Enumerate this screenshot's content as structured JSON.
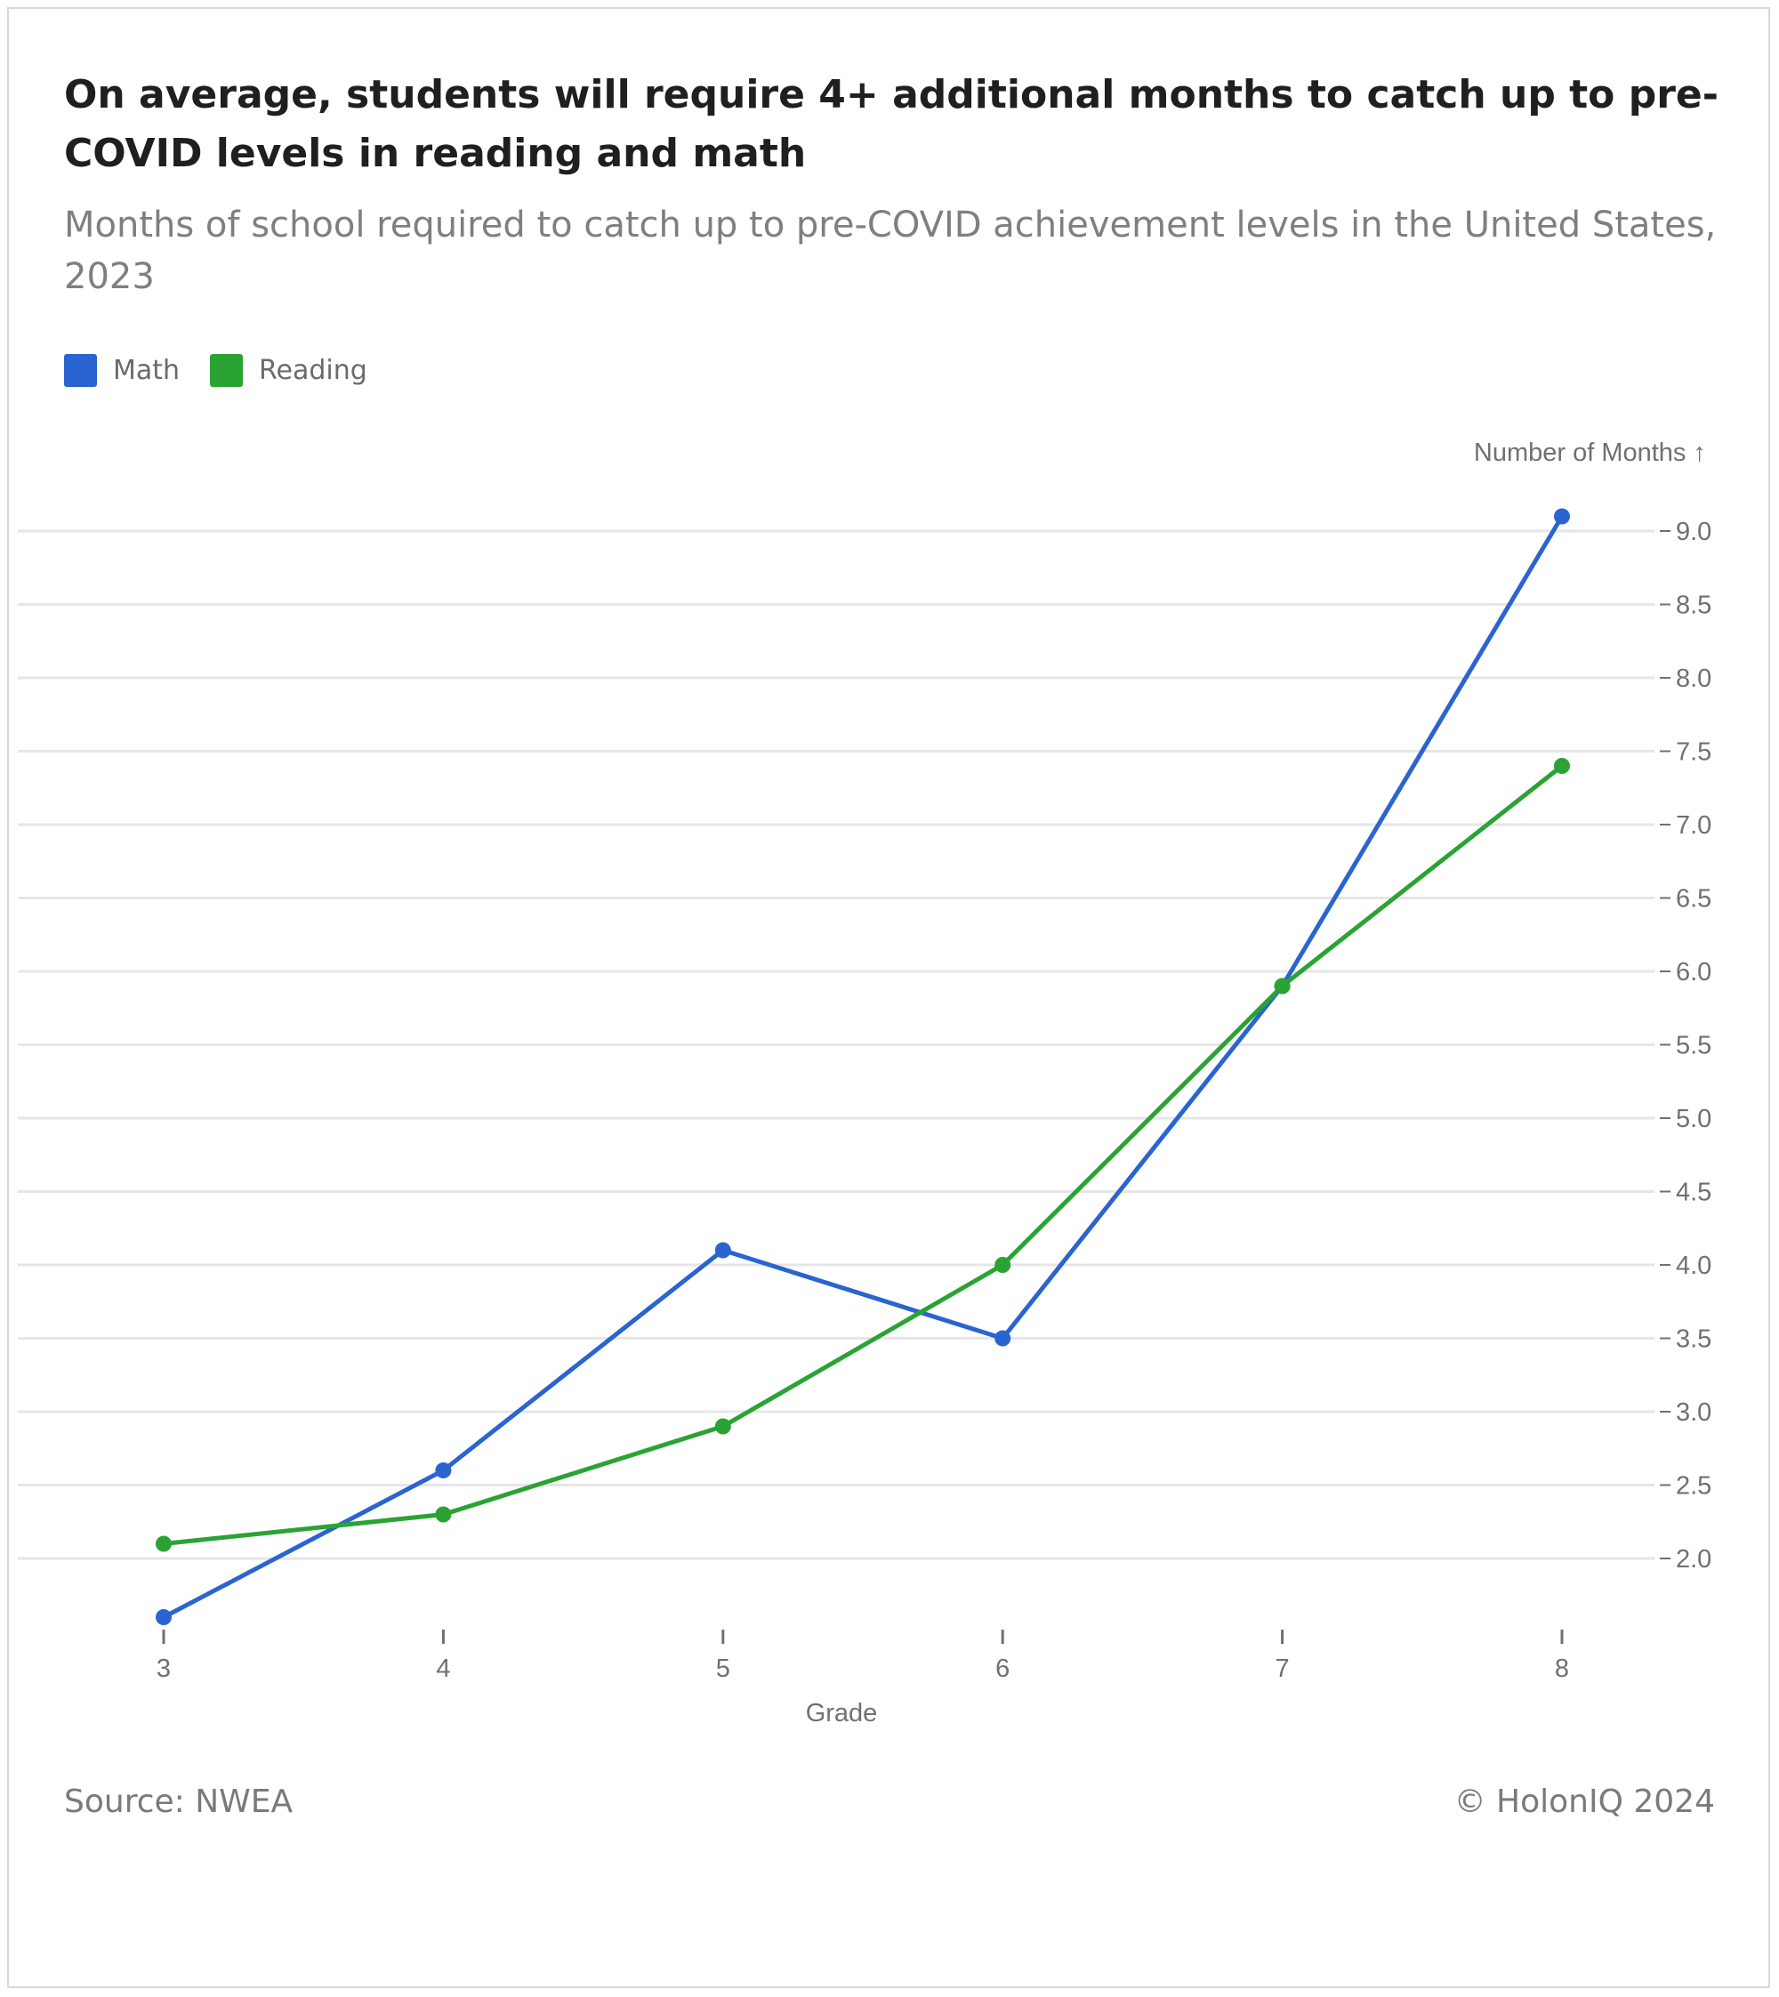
{
  "chart_data": {
    "type": "line",
    "title": "On average, students will require 4+ additional months to catch up to pre-COVID levels in reading and math",
    "subtitle": "Months of school required to catch up to pre-COVID achievement levels in the United States, 2023",
    "xlabel": "Grade",
    "ylabel": "Number of Months ↑",
    "categories": [
      "3",
      "4",
      "5",
      "6",
      "7",
      "8"
    ],
    "ylim": [
      1.6,
      9.1
    ],
    "yticks": [
      "2.0",
      "2.5",
      "3.0",
      "3.5",
      "4.0",
      "4.5",
      "5.0",
      "5.5",
      "6.0",
      "6.5",
      "7.0",
      "7.5",
      "8.0",
      "8.5",
      "9.0"
    ],
    "y_axis_position": "right",
    "grid": true,
    "legend_position": "top-left",
    "series": [
      {
        "name": "Math",
        "color": "#2a64d1",
        "values": [
          1.6,
          2.6,
          4.1,
          3.5,
          5.9,
          9.1
        ]
      },
      {
        "name": "Reading",
        "color": "#2ba334",
        "values": [
          2.1,
          2.3,
          2.9,
          4.0,
          5.9,
          7.4
        ]
      }
    ]
  },
  "footer": {
    "source": "Source: NWEA",
    "copyright": "© HolonIQ 2024"
  },
  "colors": {
    "gridline": "#e6e6e6",
    "axis_text": "#707070",
    "title_text": "#1f1f1f",
    "subtitle_text": "#7f7f7f"
  }
}
